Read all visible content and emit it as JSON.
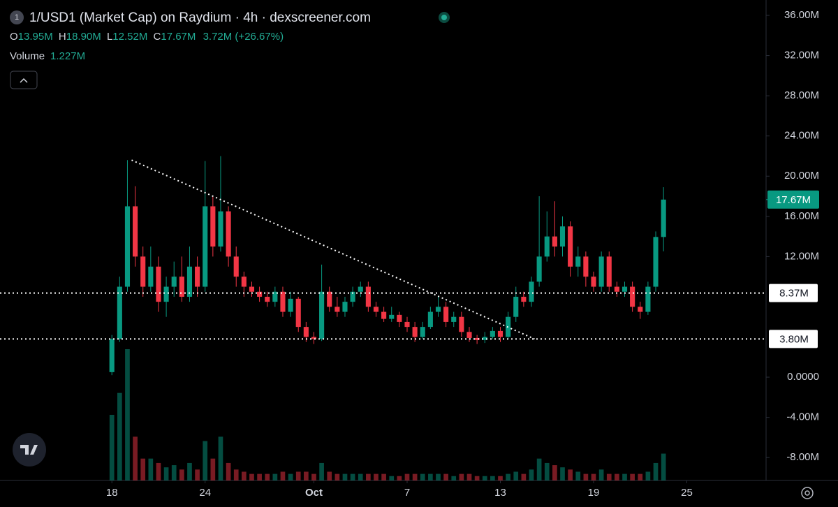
{
  "chart_data": {
    "type": "candlestick",
    "title": "1/USD1 (Market Cap) on Raydium · 4h · dexscreener.com",
    "ohlc_legend": {
      "o_label": "O",
      "o": "13.95M",
      "h_label": "H",
      "h": "18.90M",
      "l_label": "L",
      "l": "12.52M",
      "c_label": "C",
      "c": "17.67M",
      "change": "3.72M (+26.67%)"
    },
    "volume_legend": {
      "label": "Volume",
      "value": "1.227M"
    },
    "up_color": "#089981",
    "down_color": "#f23645",
    "x": [
      0,
      0.5,
      1,
      1.5,
      2,
      2.5,
      3,
      3.5,
      4,
      4.5,
      5,
      5.5,
      6,
      6.5,
      7,
      7.5,
      8,
      8.5,
      9,
      9.5,
      10,
      10.5,
      11,
      11.5,
      12,
      12.5,
      13,
      13.5,
      14,
      14.5,
      15,
      15.5,
      16,
      16.5,
      17,
      17.5,
      18,
      18.5,
      19,
      19.5,
      20,
      20.5,
      21,
      21.5,
      22,
      22.5,
      23,
      23.5,
      24,
      24.5,
      25,
      25.5,
      26,
      26.5,
      27,
      27.5,
      28,
      28.5,
      29,
      29.5,
      30,
      30.5,
      31,
      31.5,
      32,
      32.5,
      33,
      33.5,
      34,
      34.5,
      35,
      35.5
    ],
    "open": [
      0.5,
      3.8,
      9,
      17,
      12,
      9,
      11,
      7.5,
      9,
      10,
      8,
      11,
      9,
      17,
      13,
      16.5,
      12,
      10,
      9,
      8.5,
      8,
      7.5,
      8.5,
      6.5,
      7.8,
      5,
      4,
      3.8,
      8.5,
      7,
      6.5,
      7.5,
      8.5,
      9,
      7,
      6.5,
      5.8,
      6.2,
      5.5,
      5,
      4,
      5,
      6.5,
      7,
      5.5,
      6,
      4.5,
      3.9,
      3.7,
      4,
      4.6,
      4,
      6,
      8,
      7.5,
      9.5,
      12,
      14,
      13,
      15,
      11,
      12,
      10,
      9,
      12,
      9,
      8.5,
      9,
      7,
      6.5,
      9,
      13.95
    ],
    "high": [
      4.2,
      10,
      21.6,
      19,
      13,
      13,
      12,
      10,
      11.5,
      12,
      13,
      12,
      21.5,
      18,
      22,
      17,
      13,
      10.5,
      9.5,
      9,
      8.5,
      9,
      9,
      8.5,
      8,
      5.5,
      4.5,
      11.2,
      9,
      8,
      8,
      9,
      9.5,
      9.5,
      7.5,
      7,
      7,
      6.5,
      6,
      5.5,
      5.5,
      7,
      8,
      7.5,
      6.5,
      6.5,
      5,
      4.2,
      4.5,
      5,
      5,
      6.5,
      9,
      8.5,
      10,
      18,
      16.5,
      17.5,
      16,
      15.5,
      13,
      12.5,
      10.5,
      12.5,
      12.5,
      9.5,
      9.5,
      9.5,
      7.5,
      9.5,
      14.5,
      18.9
    ],
    "low": [
      0.2,
      3.5,
      8.5,
      11,
      8,
      8.5,
      6.5,
      6,
      8,
      7.5,
      7.5,
      8,
      8.5,
      12,
      12.5,
      11,
      9,
      8,
      8,
      7.5,
      7,
      7,
      6,
      6,
      4.5,
      3.5,
      3.3,
      3.6,
      6.5,
      6,
      6,
      7,
      8,
      6.5,
      6,
      5.5,
      5.5,
      5,
      4.5,
      3.5,
      3.8,
      4.8,
      6,
      5,
      5,
      4,
      3.5,
      3.3,
      3.4,
      3.8,
      3.5,
      3.8,
      5.5,
      7,
      7,
      9,
      11.5,
      12,
      12,
      10,
      10,
      9,
      8.5,
      8.5,
      8.5,
      8,
      8,
      6.5,
      5.8,
      6.2,
      8.5,
      12.52
    ],
    "close": [
      3.8,
      9,
      17,
      12,
      9,
      11,
      7.5,
      9,
      10,
      8,
      11,
      9,
      17,
      13,
      16.5,
      12,
      10,
      9,
      8.5,
      8,
      7.5,
      8.5,
      6.5,
      7.8,
      5,
      4,
      3.8,
      8.5,
      7,
      6.5,
      7.5,
      8.5,
      9,
      7,
      6.5,
      5.8,
      6.2,
      5.5,
      5,
      4,
      5,
      6.5,
      7,
      5.5,
      6,
      4.5,
      3.9,
      3.7,
      4,
      4.6,
      4,
      6,
      8,
      7.5,
      9.5,
      12,
      14,
      13,
      15,
      11,
      12,
      10,
      9,
      12,
      9,
      8.5,
      9,
      7,
      6.5,
      9,
      13.95,
      17.67
    ],
    "volume": [
      3,
      4,
      6,
      2,
      1,
      1,
      0.8,
      0.6,
      0.7,
      0.5,
      0.8,
      0.5,
      1.8,
      1,
      2,
      0.8,
      0.5,
      0.4,
      0.3,
      0.3,
      0.3,
      0.3,
      0.4,
      0.3,
      0.4,
      0.4,
      0.3,
      0.8,
      0.4,
      0.3,
      0.3,
      0.3,
      0.3,
      0.3,
      0.3,
      0.3,
      0.2,
      0.2,
      0.3,
      0.3,
      0.3,
      0.3,
      0.3,
      0.3,
      0.2,
      0.3,
      0.3,
      0.2,
      0.2,
      0.2,
      0.2,
      0.3,
      0.4,
      0.3,
      0.5,
      1,
      0.8,
      0.7,
      0.6,
      0.5,
      0.4,
      0.3,
      0.3,
      0.5,
      0.3,
      0.3,
      0.3,
      0.3,
      0.3,
      0.4,
      0.8,
      1.227
    ],
    "volume_ylim": [
      0,
      6
    ],
    "xlim": [
      -7.2,
      42.1
    ],
    "xticks": [
      {
        "value": 0,
        "label": "18"
      },
      {
        "value": 6,
        "label": "24"
      },
      {
        "value": 13,
        "label": "Oct"
      },
      {
        "value": 19,
        "label": "7"
      },
      {
        "value": 25,
        "label": "13"
      },
      {
        "value": 31,
        "label": "19"
      },
      {
        "value": 37,
        "label": "25"
      }
    ],
    "ylim": [
      -10.28,
      37.53
    ],
    "yticks": [
      {
        "value": 36,
        "label": "36.00M"
      },
      {
        "value": 32,
        "label": "32.00M"
      },
      {
        "value": 28,
        "label": "28.00M"
      },
      {
        "value": 24,
        "label": "24.00M"
      },
      {
        "value": 20,
        "label": "20.00M"
      },
      {
        "value": 16,
        "label": "16.00M"
      },
      {
        "value": 12,
        "label": "12.00M"
      },
      {
        "value": 0,
        "label": "0.0000"
      },
      {
        "value": -4,
        "label": "-4.00M"
      },
      {
        "value": -8,
        "label": "-8.00M"
      }
    ],
    "levels": [
      {
        "value": 8.37,
        "label": "8.37M"
      },
      {
        "value": 3.8,
        "label": "3.80M"
      }
    ],
    "last_price": {
      "value": 17.67,
      "label": "17.67M"
    },
    "trendline": {
      "x": [
        1.27,
        27.2
      ],
      "y": [
        21.6,
        3.8
      ]
    }
  }
}
